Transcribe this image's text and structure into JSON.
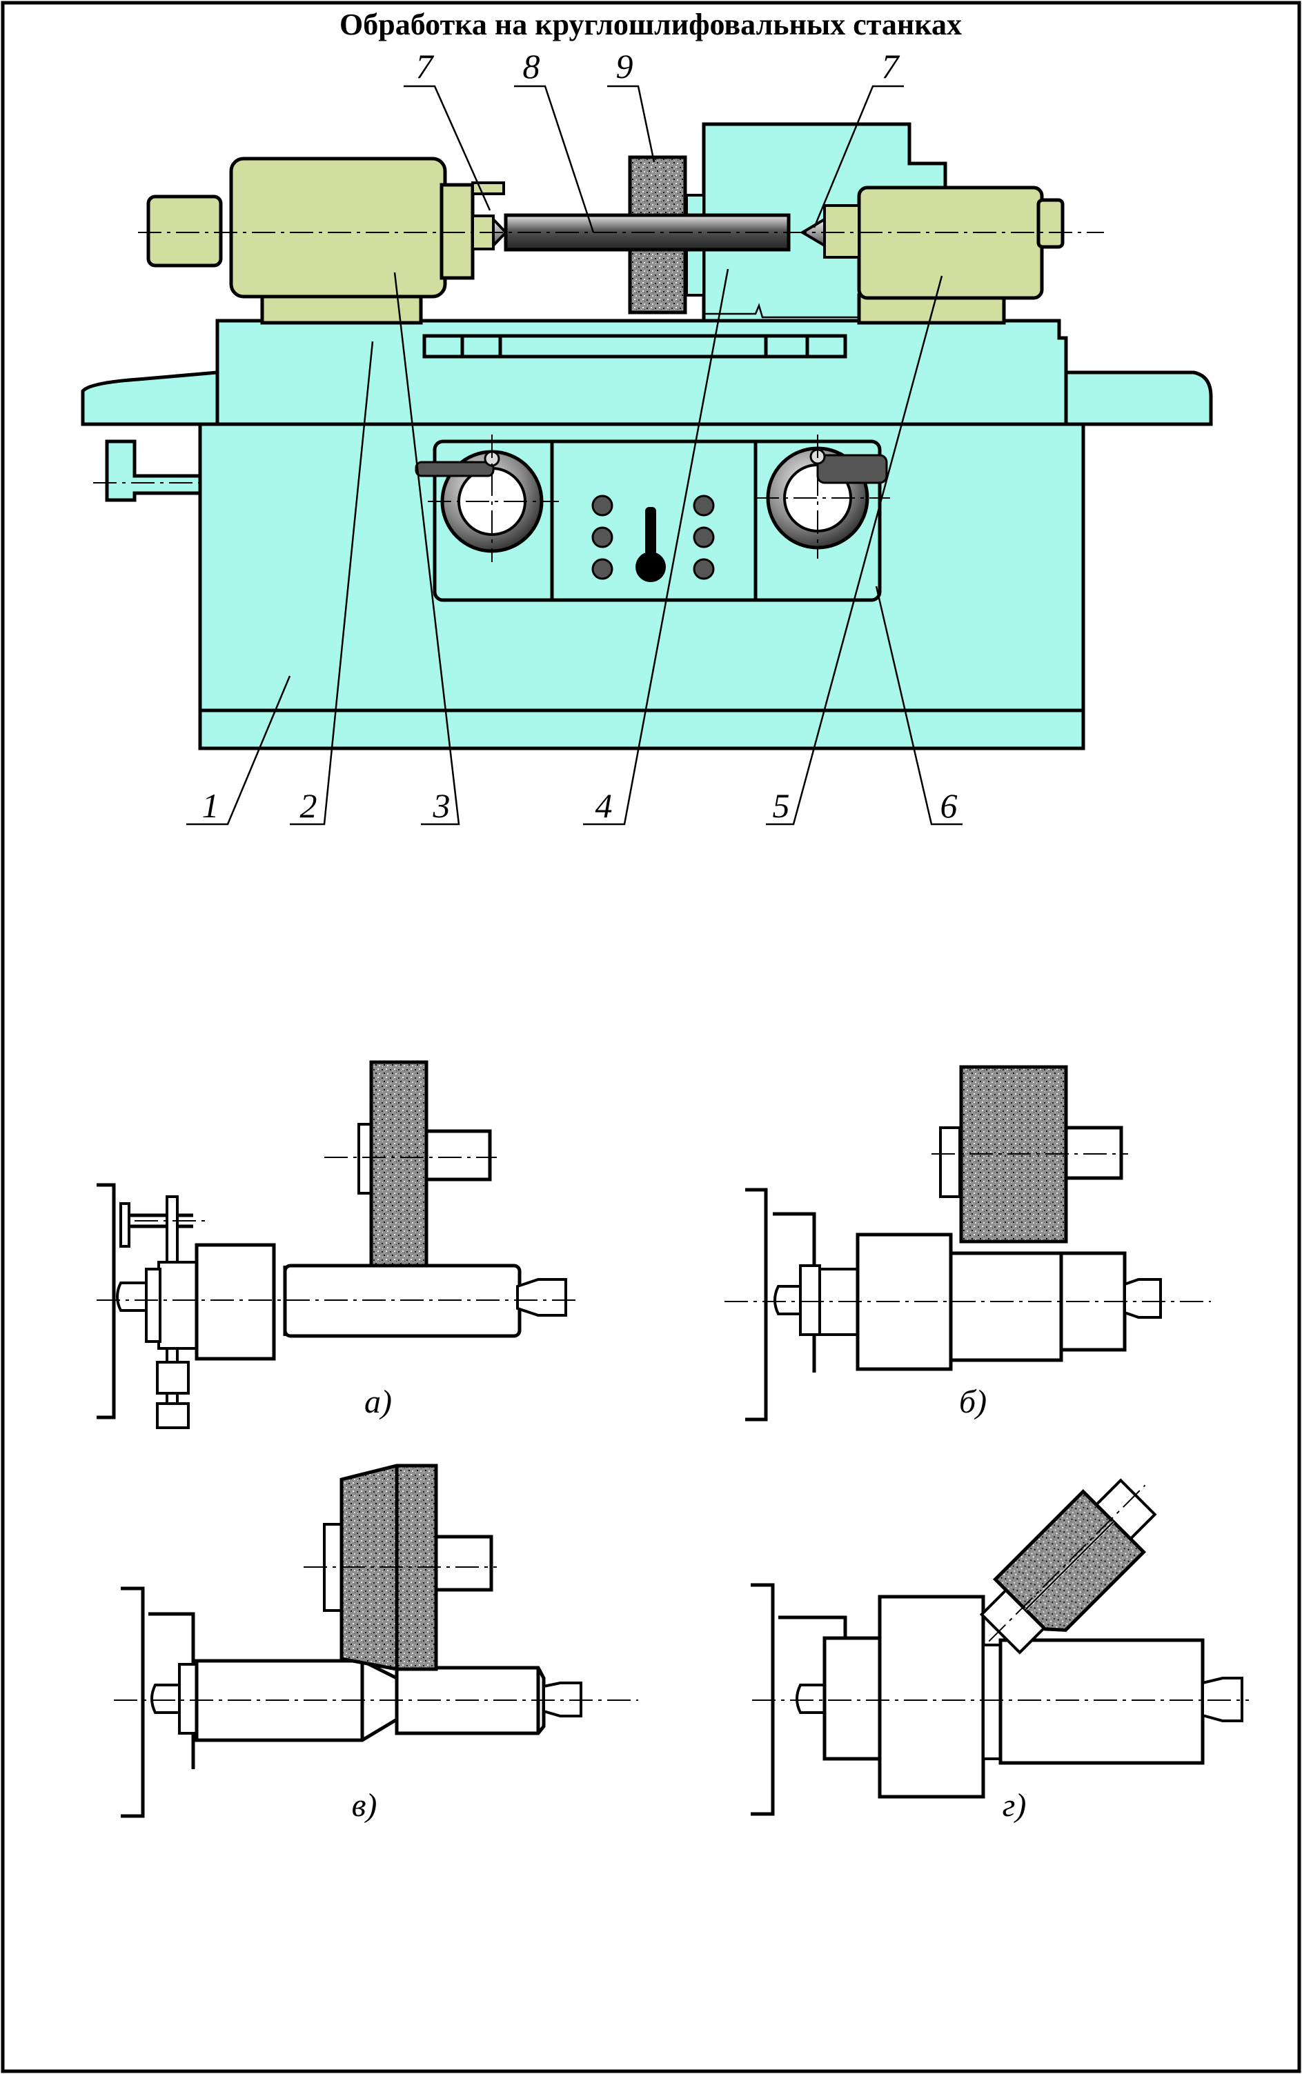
{
  "title": "Обработка на круглошлифовальных станках",
  "callouts": {
    "top": [
      "7",
      "8",
      "9",
      "7"
    ],
    "bottom": [
      "1",
      "2",
      "3",
      "4",
      "5",
      "6"
    ]
  },
  "captions": [
    "а)",
    "б)",
    "в)",
    "г)"
  ],
  "colors": {
    "bed": "#aaf8ec",
    "headstock": "#d2dda0",
    "wheel": "#8a8a8a",
    "rod": "#444444",
    "outline": "#000000"
  }
}
